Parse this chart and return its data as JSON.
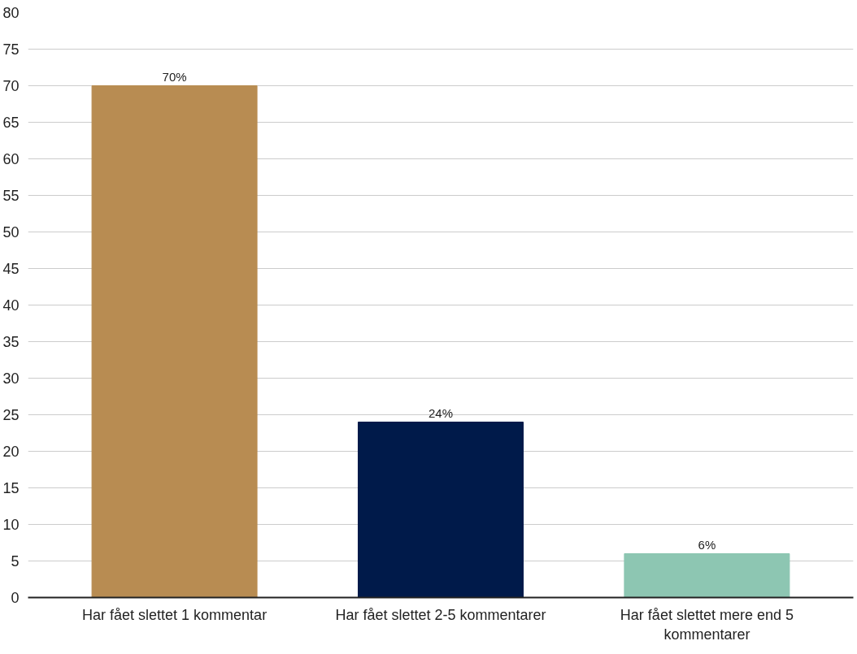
{
  "chart_data": {
    "type": "bar",
    "categories": [
      "Har fået slettet 1 kommentar",
      "Har fået slettet 2-5 kommentarer",
      "Har fået slettet mere end 5 kommentarer"
    ],
    "values": [
      70,
      24,
      6
    ],
    "colors": [
      "#b88c52",
      "#001a4a",
      "#8dc6b2"
    ],
    "value_labels": [
      "70%",
      "24%",
      "6%"
    ],
    "ylim": [
      0,
      80
    ],
    "yticks": [
      0,
      5,
      10,
      15,
      20,
      25,
      30,
      35,
      40,
      45,
      50,
      55,
      60,
      65,
      70,
      75,
      80
    ],
    "grid": "y"
  }
}
